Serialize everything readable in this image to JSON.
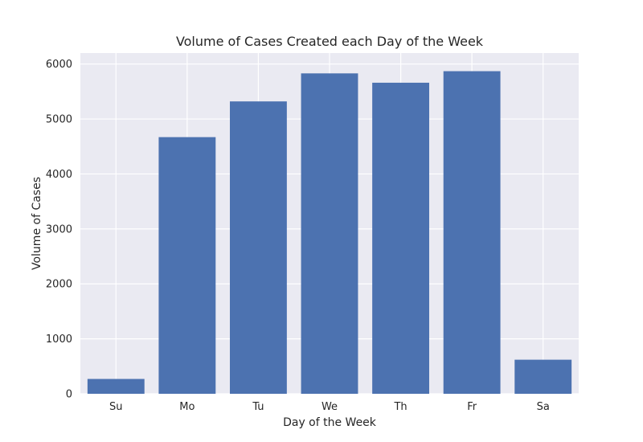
{
  "chart_data": {
    "type": "bar",
    "title": "Volume of Cases Created each Day of the Week",
    "xlabel": "Day of the Week",
    "ylabel": "Volume of Cases",
    "categories": [
      "Su",
      "Mo",
      "Tu",
      "We",
      "Th",
      "Fr",
      "Sa"
    ],
    "values": [
      270,
      4670,
      5320,
      5830,
      5660,
      5870,
      620
    ],
    "ylim": [
      0,
      6200
    ],
    "yticks": [
      0,
      1000,
      2000,
      3000,
      4000,
      5000,
      6000
    ],
    "ytick_labels": [
      "0",
      "1000",
      "2000",
      "3000",
      "4000",
      "5000",
      "6000"
    ],
    "grid": true,
    "colors": {
      "bar": "#4c72b0",
      "plot_background": "#eaeaf2",
      "grid": "#ffffff",
      "text": "#262626"
    }
  }
}
